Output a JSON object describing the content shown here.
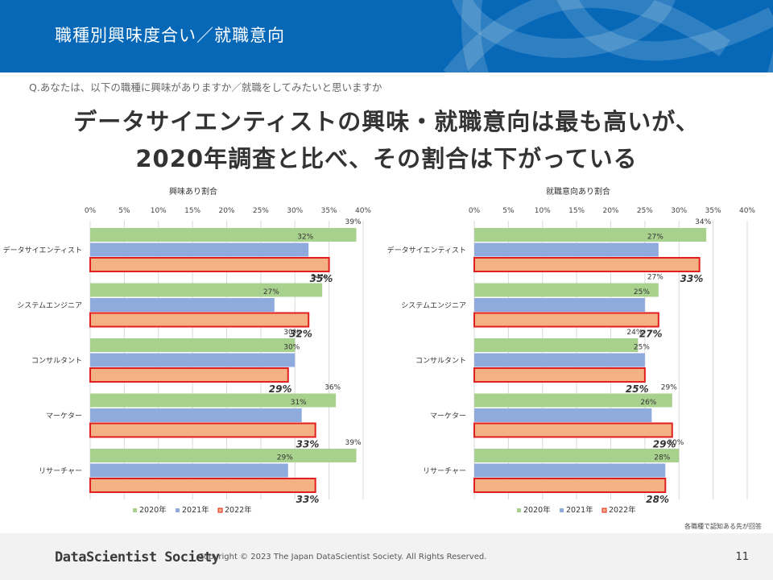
{
  "header": {
    "title": "職種別興味度合い／就職意向"
  },
  "question": "Q.あなたは、以下の職種に興味がありますか／就職をしてみたいと思いますか",
  "headline": {
    "line1": "データサイエンティストの興味・就職意向は最も高いが、",
    "line2": "2020年調査と比べ、その割合は下がっている"
  },
  "colors": {
    "header_bg": "#0868b8",
    "series_2020": "#a9d18e",
    "series_2021": "#8faadc",
    "series_2022": "#f4b183",
    "series_2022_border": "#e02020"
  },
  "chart_data": [
    {
      "type": "bar",
      "orientation": "horizontal",
      "title": "興味あり割合",
      "categories": [
        "データサイエンティスト",
        "システムエンジニア",
        "コンサルタント",
        "マーケター",
        "リサーチャー"
      ],
      "series": [
        {
          "name": "2020年",
          "values": [
            39,
            34,
            30,
            36,
            39
          ]
        },
        {
          "name": "2021年",
          "values": [
            32,
            27,
            30,
            31,
            29
          ]
        },
        {
          "name": "2022年",
          "values": [
            35,
            32,
            29,
            33,
            33
          ]
        }
      ],
      "xlim": [
        0,
        40
      ],
      "ticks": [
        0,
        5,
        10,
        15,
        20,
        25,
        30,
        35,
        40
      ],
      "tick_labels": [
        "0%",
        "5%",
        "10%",
        "15%",
        "20%",
        "25%",
        "30%",
        "35%",
        "40%"
      ],
      "value_suffix": "%",
      "legend": [
        "2020年",
        "2021年",
        "2022年"
      ],
      "legend_position": "bottom",
      "grid": true
    },
    {
      "type": "bar",
      "orientation": "horizontal",
      "title": "就職意向あり割合",
      "categories": [
        "データサイエンティスト",
        "システムエンジニア",
        "コンサルタント",
        "マーケター",
        "リサーチャー"
      ],
      "series": [
        {
          "name": "2020年",
          "values": [
            34,
            27,
            24,
            29,
            30
          ]
        },
        {
          "name": "2021年",
          "values": [
            27,
            25,
            25,
            26,
            28
          ]
        },
        {
          "name": "2022年",
          "values": [
            33,
            27,
            25,
            29,
            28
          ]
        }
      ],
      "xlim": [
        0,
        40
      ],
      "ticks": [
        0,
        5,
        10,
        15,
        20,
        25,
        30,
        35,
        40
      ],
      "tick_labels": [
        "0%",
        "5%",
        "10%",
        "15%",
        "20%",
        "25%",
        "30%",
        "35%",
        "40%"
      ],
      "value_suffix": "%",
      "legend": [
        "2020年",
        "2021年",
        "2022年"
      ],
      "legend_position": "bottom",
      "grid": true
    }
  ],
  "footnote": "各職種で認知ある先が回答",
  "footer": {
    "logo": "DataScientist Society",
    "copyright": "Copyright © 2023  The Japan DataScientist Society. All Rights Reserved.",
    "page_number": "11"
  }
}
